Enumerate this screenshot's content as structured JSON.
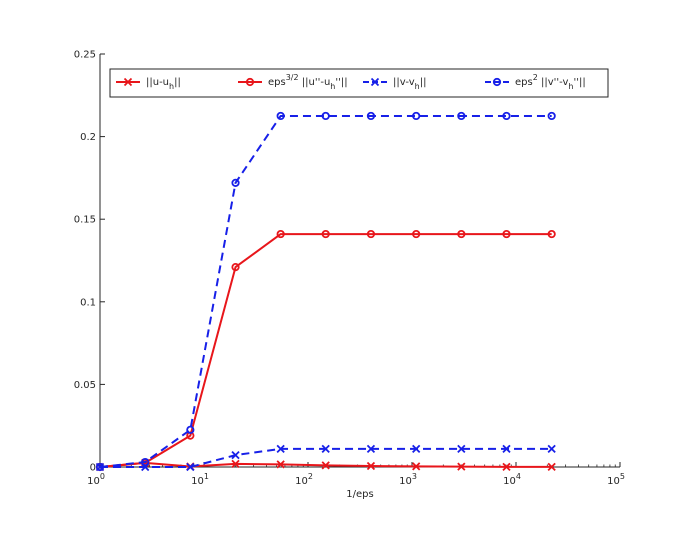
{
  "chart_data": {
    "type": "line",
    "xlabel": "1/eps",
    "ylabel": "",
    "title": "",
    "xscale": "log",
    "xlim": [
      1,
      100000
    ],
    "ylim": [
      0,
      0.25
    ],
    "grid": false,
    "legend_position": "top",
    "legend_columns": 4,
    "x_ticks": [
      {
        "base": "10",
        "exp": "0"
      },
      {
        "base": "10",
        "exp": "1"
      },
      {
        "base": "10",
        "exp": "2"
      },
      {
        "base": "10",
        "exp": "3"
      },
      {
        "base": "10",
        "exp": "4"
      },
      {
        "base": "10",
        "exp": "5"
      }
    ],
    "y_ticks": [
      "0",
      "0.05",
      "0.1",
      "0.15",
      "0.2",
      "0.25"
    ],
    "x": [
      1,
      2.72,
      7.39,
      20.1,
      54.6,
      148,
      403,
      1097,
      2981,
      8103,
      22026
    ],
    "series": [
      {
        "legend_main": "||u-u",
        "legend_sub": "h",
        "legend_sup": "",
        "legend_tail": "||",
        "color": "#e8161b",
        "dash": "solid",
        "marker": "x",
        "values": [
          0,
          0.0025,
          0.0003,
          0.0019,
          0.0016,
          0.001,
          0.0006,
          0.0004,
          0.0002,
          0.0001,
          0.0001
        ]
      },
      {
        "legend_main": "eps",
        "legend_sub": "",
        "legend_sup": "3/2",
        "legend_tail": " ||u''-u",
        "legend_sub2": "h",
        "legend_tail2": "''||",
        "color": "#e8161b",
        "dash": "solid",
        "marker": "o",
        "values": [
          0,
          0.0025,
          0.019,
          0.121,
          0.141,
          0.141,
          0.141,
          0.141,
          0.141,
          0.141,
          0.141
        ]
      },
      {
        "legend_main": "||v-v",
        "legend_sub": "h",
        "legend_sup": "",
        "legend_tail": "||",
        "color": "#1720e8",
        "dash": "dashed",
        "marker": "x",
        "values": [
          0,
          0,
          0,
          0.0072,
          0.011,
          0.011,
          0.011,
          0.011,
          0.011,
          0.011,
          0.011
        ]
      },
      {
        "legend_main": "eps",
        "legend_sub": "",
        "legend_sup": "2",
        "legend_tail": " ||v''-v",
        "legend_sub2": "h",
        "legend_tail2": "''||",
        "color": "#1720e8",
        "dash": "dashed",
        "marker": "o",
        "values": [
          0,
          0.003,
          0.0225,
          0.172,
          0.2125,
          0.2125,
          0.2125,
          0.2125,
          0.2125,
          0.2125,
          0.2125
        ]
      }
    ]
  }
}
